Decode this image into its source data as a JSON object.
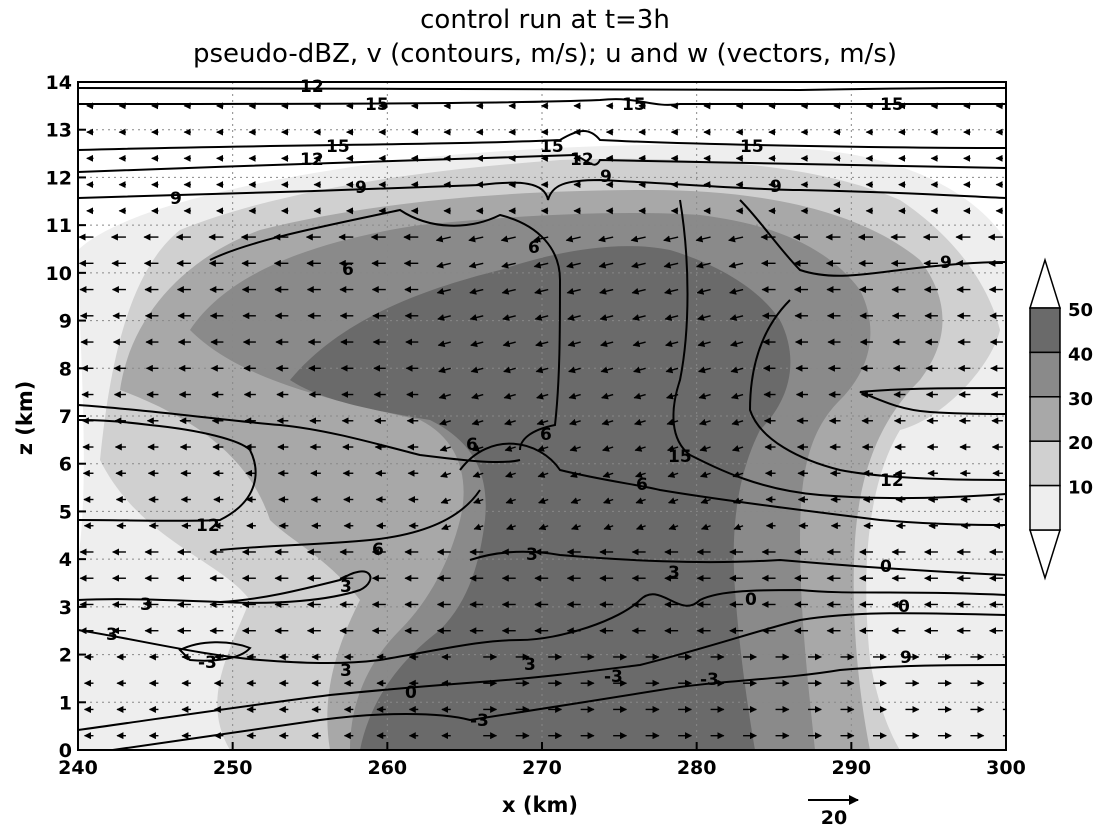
{
  "chart_data": {
    "type": "contour",
    "title": "control run at t=3h",
    "subtitle": "pseudo-dBZ, v (contours, m/s); u and w (vectors, m/s)",
    "xlabel": "x (km)",
    "ylabel": "z (km)",
    "xlim": [
      240,
      300
    ],
    "ylim": [
      0,
      14
    ],
    "x_ticks": [
      240,
      250,
      260,
      270,
      280,
      290,
      300
    ],
    "y_ticks": [
      0,
      1,
      2,
      3,
      4,
      5,
      6,
      7,
      8,
      9,
      10,
      11,
      12,
      13,
      14
    ],
    "grid": "dotted",
    "shading": {
      "variable": "pseudo-dBZ",
      "colorbar_labels": [
        10,
        20,
        30,
        40,
        50
      ],
      "colors": [
        "#eeeeee",
        "#d0d0d0",
        "#a8a8a8",
        "#8a8a8a",
        "#6a6a6a"
      ]
    },
    "contours": {
      "variable": "v",
      "units": "m/s",
      "levels": [
        -3,
        0,
        3,
        6,
        9,
        12,
        15
      ],
      "labels": [
        "12",
        "15",
        "15",
        "15",
        "15",
        "15",
        "15",
        "12",
        "12",
        "9",
        "9",
        "9",
        "9",
        "6",
        "6",
        "6",
        "6",
        "6",
        "6",
        "3",
        "3",
        "3",
        "3",
        "3",
        "3",
        "3",
        "0",
        "0",
        "0",
        "0",
        "-3",
        "-3",
        "-3",
        "-3",
        "9",
        "12",
        "15",
        "12",
        "9"
      ]
    },
    "vectors": {
      "variables": "u and w",
      "units": "m/s",
      "reference_value": "20"
    }
  }
}
